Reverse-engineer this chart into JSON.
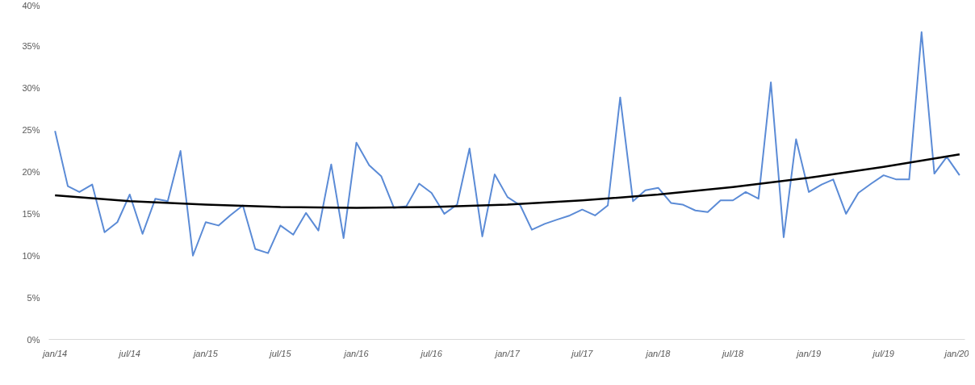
{
  "chart_data": {
    "type": "line",
    "x": [
      "2014-01",
      "2014-02",
      "2014-03",
      "2014-04",
      "2014-05",
      "2014-06",
      "2014-07",
      "2014-08",
      "2014-09",
      "2014-10",
      "2014-11",
      "2014-12",
      "2015-01",
      "2015-02",
      "2015-03",
      "2015-04",
      "2015-05",
      "2015-06",
      "2015-07",
      "2015-08",
      "2015-09",
      "2015-10",
      "2015-11",
      "2015-12",
      "2016-01",
      "2016-02",
      "2016-03",
      "2016-04",
      "2016-05",
      "2016-06",
      "2016-07",
      "2016-08",
      "2016-09",
      "2016-10",
      "2016-11",
      "2016-12",
      "2017-01",
      "2017-02",
      "2017-03",
      "2017-04",
      "2017-05",
      "2017-06",
      "2017-07",
      "2017-08",
      "2017-09",
      "2017-10",
      "2017-11",
      "2017-12",
      "2018-01",
      "2018-02",
      "2018-03",
      "2018-04",
      "2018-05",
      "2018-06",
      "2018-07",
      "2018-08",
      "2018-09",
      "2018-10",
      "2018-11",
      "2018-12",
      "2019-01",
      "2019-02",
      "2019-03",
      "2019-04",
      "2019-05",
      "2019-06",
      "2019-07",
      "2019-08",
      "2019-09",
      "2019-10",
      "2019-11",
      "2019-12",
      "2020-01"
    ],
    "series": [
      {
        "color": "#5b8bd6",
        "values": [
          24.9,
          18.3,
          17.6,
          18.5,
          12.8,
          14.0,
          17.3,
          12.6,
          16.8,
          16.5,
          22.5,
          10.0,
          14.0,
          13.6,
          14.8,
          16.0,
          10.8,
          10.3,
          13.6,
          12.5,
          15.1,
          13.0,
          20.9,
          12.1,
          23.5,
          20.8,
          19.5,
          15.7,
          15.9,
          18.6,
          17.5,
          15.0,
          16.1,
          22.8,
          12.3,
          19.7,
          17.0,
          16.0,
          13.1,
          13.8,
          14.3,
          14.8,
          15.5,
          14.8,
          16.0,
          28.9,
          16.5,
          17.8,
          18.1,
          16.3,
          16.1,
          15.4,
          15.2,
          16.6,
          16.6,
          17.6,
          16.8,
          30.7,
          12.2,
          23.9,
          17.6,
          18.5,
          19.1,
          15.0,
          17.5,
          18.6,
          19.6,
          19.1,
          19.1,
          36.7,
          19.8,
          21.8,
          19.6
        ]
      },
      {
        "type": "line",
        "color": "#000000",
        "x": [
          "2014-01",
          "2014-07",
          "2015-01",
          "2015-07",
          "2016-01",
          "2016-07",
          "2017-01",
          "2017-07",
          "2018-01",
          "2018-07",
          "2019-01",
          "2019-07",
          "2020-01"
        ],
        "values": [
          17.2,
          16.5,
          16.1,
          15.8,
          15.7,
          15.8,
          16.1,
          16.6,
          17.3,
          18.2,
          19.3,
          20.6,
          22.1
        ]
      }
    ],
    "xlim": [
      "2013-12-17",
      "2020-01-14"
    ],
    "xticks": [
      {
        "value": "2014-01",
        "label": "jan/14"
      },
      {
        "value": "2014-07",
        "label": "jul/14"
      },
      {
        "value": "2015-01",
        "label": "jan/15"
      },
      {
        "value": "2015-07",
        "label": "jul/15"
      },
      {
        "value": "2016-01",
        "label": "jan/16"
      },
      {
        "value": "2016-07",
        "label": "jul/16"
      },
      {
        "value": "2017-01",
        "label": "jan/17"
      },
      {
        "value": "2017-07",
        "label": "jul/17"
      },
      {
        "value": "2018-01",
        "label": "jan/18"
      },
      {
        "value": "2018-07",
        "label": "jul/18"
      },
      {
        "value": "2019-01",
        "label": "jan/19"
      },
      {
        "value": "2019-07",
        "label": "jul/19"
      },
      {
        "value": "2020-01",
        "label": "jan/20"
      }
    ],
    "ylim": [
      0,
      40
    ],
    "yticks": [
      {
        "value": 0,
        "label": "0%"
      },
      {
        "value": 5,
        "label": "5%"
      },
      {
        "value": 10,
        "label": "10%"
      },
      {
        "value": 15,
        "label": "15%"
      },
      {
        "value": 20,
        "label": "20%"
      },
      {
        "value": 25,
        "label": "25%"
      },
      {
        "value": 30,
        "label": "30%"
      },
      {
        "value": 35,
        "label": "35%"
      },
      {
        "value": 40,
        "label": "40%"
      }
    ],
    "grid": false,
    "marker": "none"
  }
}
